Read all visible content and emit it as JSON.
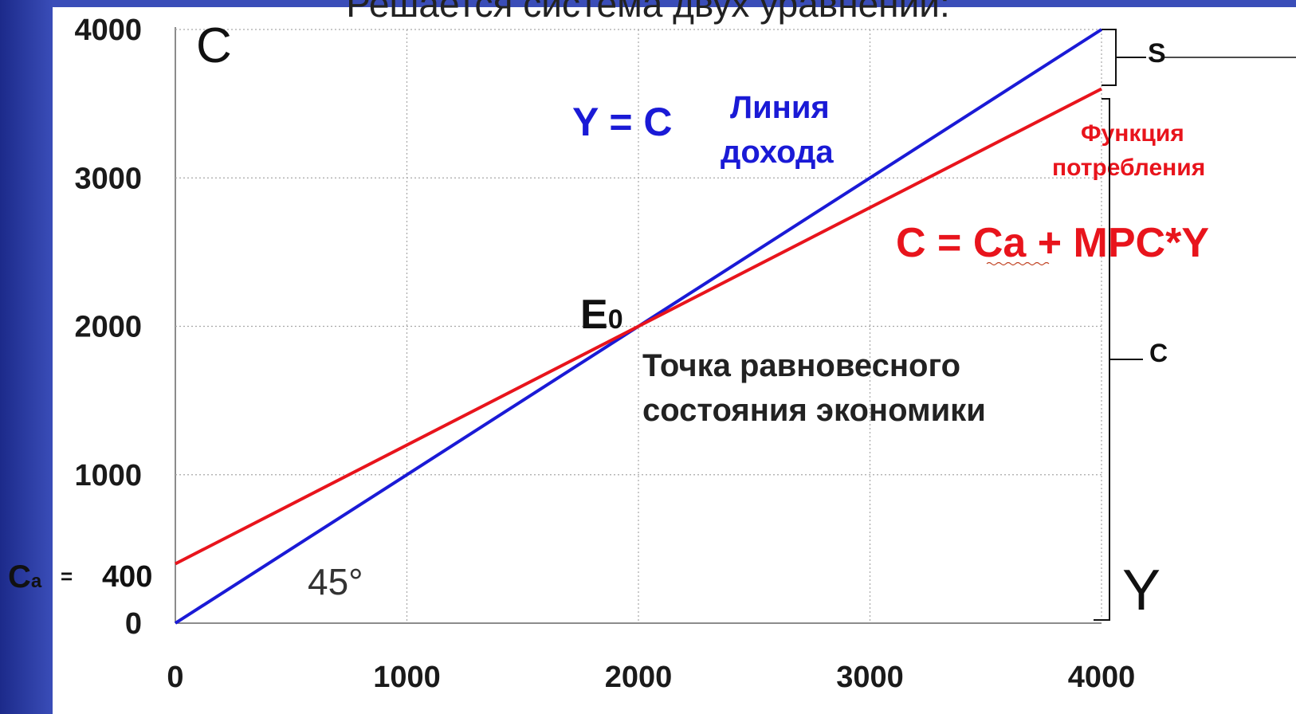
{
  "slide_title": "Решается система двух уравнений:",
  "chart_data": {
    "type": "line",
    "title": "",
    "xlabel": "Y",
    "ylabel": "C",
    "xlim": [
      0,
      4000
    ],
    "ylim": [
      0,
      4000
    ],
    "x_ticks": [
      "0",
      "1000",
      "2000",
      "3000",
      "4000"
    ],
    "y_ticks": [
      "0",
      "1000",
      "2000",
      "3000",
      "4000"
    ],
    "grid": true,
    "series": [
      {
        "name": "Y = C",
        "color": "#1a1ad6",
        "x": [
          0,
          4000
        ],
        "y": [
          0,
          4000
        ]
      },
      {
        "name": "C = Ca + MPC*Y",
        "color": "#e8141c",
        "x": [
          0,
          4000
        ],
        "y": [
          400,
          3600
        ]
      }
    ],
    "autonomous_label": "Ca = ",
    "autonomous_value": "400",
    "angle_label": "45°",
    "equilibrium": {
      "label": "E0",
      "x": 2000,
      "y": 2000
    },
    "annotations": {
      "income_eq": "Y = C",
      "income_line_1": "Линия",
      "income_line_2": "дохода",
      "consumption_eq": "C = Ca + MPC*Y",
      "consumption_func_1": "Функция",
      "consumption_func_2": "потребления",
      "equilibrium_desc_1": "Точка равновесного",
      "equilibrium_desc_2": "состояния экономики",
      "savings_label": "S",
      "consumption_label": "C"
    }
  }
}
